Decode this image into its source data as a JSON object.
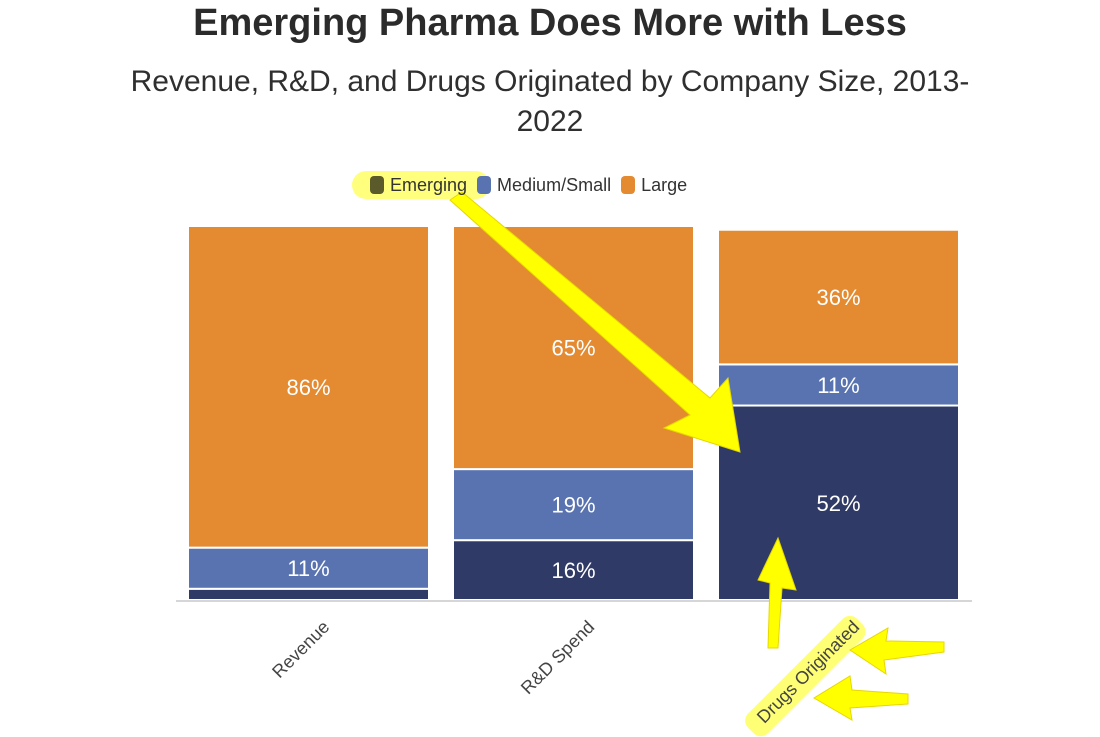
{
  "chart_data": {
    "type": "bar",
    "stacked": true,
    "normalized": true,
    "title": "Emerging Pharma Does More with Less",
    "subtitle": "Revenue, R&D, and Drugs Originated by Company Size, 2013-2022",
    "subtitle_lines": [
      "Revenue, R&D, and Drugs Originated by Company Size, 2013-",
      "2022"
    ],
    "categories": [
      "Revenue",
      "R&D Spend",
      "Drugs Originated"
    ],
    "series": [
      {
        "name": "Emerging",
        "values": [
          3,
          16,
          52
        ],
        "labels": [
          "",
          "16%",
          "52%"
        ],
        "color": "#2f3a66"
      },
      {
        "name": "Medium/Small",
        "values": [
          11,
          19,
          11
        ],
        "labels": [
          "11%",
          "19%",
          "11%"
        ],
        "color": "#5873b0"
      },
      {
        "name": "Large",
        "values": [
          86,
          65,
          36
        ],
        "labels": [
          "86%",
          "65%",
          "36%"
        ],
        "color": "#e48a31"
      }
    ],
    "ylim": [
      0,
      100
    ],
    "legend_position": "top-center",
    "annotations": {
      "highlight_color": "#ffff66",
      "arrow_color": "#ffff00",
      "highlighted": [
        "Emerging",
        "Drugs Originated"
      ]
    }
  }
}
